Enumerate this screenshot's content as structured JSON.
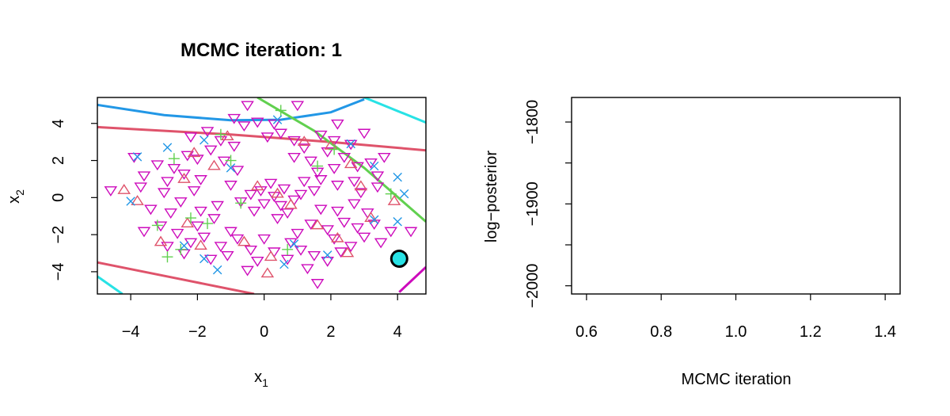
{
  "charts": [
    {
      "title": "MCMC iteration: 1",
      "xlabel": "x",
      "xlabel_sub": "1",
      "ylabel": "x",
      "ylabel_sub": "2"
    },
    {
      "xlabel": "MCMC iteration",
      "ylabel": "log−posterior"
    }
  ],
  "chart_data": [
    {
      "type": "scatter",
      "title": "MCMC iteration: 1",
      "xlabel": "x₁",
      "ylabel": "x₂",
      "xlim": [
        -5.0,
        4.85
      ],
      "ylim": [
        -5.2,
        5.4
      ],
      "xticks": [
        -4,
        -2,
        0,
        2,
        4
      ],
      "yticks": [
        -4,
        -2,
        0,
        2,
        4
      ],
      "xtick_labels": [
        "−4",
        "−2",
        "0",
        "2",
        "4"
      ],
      "ytick_labels": [
        "−4",
        "−2",
        "0",
        "2",
        "4"
      ],
      "grid": false,
      "legend": "none",
      "series": [
        {
          "marker": "triangle-down",
          "color": "#CD0BBC",
          "points": [
            [
              -2.3,
              2.3
            ],
            [
              -2.0,
              2.1
            ],
            [
              -2.7,
              1.6
            ],
            [
              -3.2,
              1.8
            ],
            [
              -3.6,
              1.2
            ],
            [
              -2.9,
              0.9
            ],
            [
              -2.4,
              1.3
            ],
            [
              -1.9,
              1.0
            ],
            [
              -1.6,
              2.6
            ],
            [
              -1.2,
              2.0
            ],
            [
              -0.8,
              1.5
            ],
            [
              -3.9,
              2.2
            ],
            [
              -2.2,
              3.3
            ],
            [
              -1.7,
              3.6
            ],
            [
              -1.3,
              3.1
            ],
            [
              -0.9,
              2.8
            ],
            [
              -0.6,
              3.9
            ],
            [
              -0.2,
              4.1
            ],
            [
              0.3,
              4.0
            ],
            [
              -0.9,
              4.3
            ],
            [
              -0.5,
              5.0
            ],
            [
              0.1,
              3.3
            ],
            [
              0.5,
              3.5
            ],
            [
              0.9,
              3.1
            ],
            [
              1.2,
              2.7
            ],
            [
              1.7,
              3.4
            ],
            [
              2.1,
              3.1
            ],
            [
              2.6,
              2.9
            ],
            [
              3.0,
              3.5
            ],
            [
              2.4,
              2.2
            ],
            [
              1.9,
              2.5
            ],
            [
              1.4,
              2.0
            ],
            [
              0.9,
              2.2
            ],
            [
              1.6,
              1.4
            ],
            [
              2.1,
              1.6
            ],
            [
              2.8,
              1.7
            ],
            [
              3.2,
              1.9
            ],
            [
              3.4,
              1.2
            ],
            [
              2.7,
              0.9
            ],
            [
              2.2,
              0.7
            ],
            [
              1.7,
              1.0
            ],
            [
              1.2,
              0.9
            ],
            [
              3.6,
              2.2
            ],
            [
              1.0,
              5.0
            ],
            [
              2.2,
              4.0
            ],
            [
              -0.1,
              0.4
            ],
            [
              0.3,
              0.1
            ],
            [
              0.6,
              0.5
            ],
            [
              0.0,
              -0.3
            ],
            [
              0.5,
              -0.4
            ],
            [
              0.9,
              -0.1
            ],
            [
              -0.4,
              0.2
            ],
            [
              0.2,
              0.8
            ],
            [
              -0.3,
              -0.7
            ],
            [
              0.7,
              -0.8
            ],
            [
              1.1,
              0.2
            ],
            [
              0.4,
              -1.1
            ],
            [
              -0.7,
              -0.2
            ],
            [
              -4.6,
              0.4
            ],
            [
              -3.7,
              0.6
            ],
            [
              -3.0,
              0.3
            ],
            [
              -2.5,
              -0.2
            ],
            [
              -2.1,
              0.4
            ],
            [
              -2.8,
              -0.8
            ],
            [
              -3.4,
              -0.6
            ],
            [
              -1.9,
              -0.7
            ],
            [
              -1.5,
              -1.1
            ],
            [
              -3.6,
              -1.8
            ],
            [
              -3.1,
              -1.5
            ],
            [
              -2.6,
              -1.9
            ],
            [
              -2.2,
              -2.4
            ],
            [
              -1.8,
              -2.1
            ],
            [
              -1.3,
              -2.6
            ],
            [
              -0.8,
              -2.2
            ],
            [
              -0.4,
              -2.8
            ],
            [
              -1.1,
              -3.1
            ],
            [
              -1.6,
              -3.3
            ],
            [
              -2.4,
              -3.0
            ],
            [
              -2.9,
              -2.6
            ],
            [
              -0.2,
              -3.4
            ],
            [
              0.3,
              -2.9
            ],
            [
              0.7,
              -3.3
            ],
            [
              1.1,
              -2.8
            ],
            [
              1.5,
              -3.1
            ],
            [
              1.9,
              -3.4
            ],
            [
              2.3,
              -2.9
            ],
            [
              1.3,
              -3.8
            ],
            [
              1.6,
              -4.6
            ],
            [
              -0.5,
              -3.9
            ],
            [
              2.1,
              -2.2
            ],
            [
              2.6,
              -2.6
            ],
            [
              3.0,
              -2.1
            ],
            [
              3.5,
              -2.4
            ],
            [
              2.8,
              -1.6
            ],
            [
              2.4,
              -1.3
            ],
            [
              1.9,
              -1.7
            ],
            [
              1.4,
              -1.4
            ],
            [
              1.0,
              -1.9
            ],
            [
              3.3,
              -1.4
            ],
            [
              3.8,
              -1.8
            ],
            [
              4.4,
              -1.8
            ],
            [
              2.2,
              -0.7
            ],
            [
              2.7,
              -0.3
            ],
            [
              3.1,
              -0.8
            ],
            [
              1.7,
              -0.6
            ],
            [
              0.8,
              -2.4
            ],
            [
              -1.4,
              -0.4
            ],
            [
              -2.0,
              -1.5
            ],
            [
              -1.0,
              -1.8
            ],
            [
              0.0,
              -2.2
            ],
            [
              2.9,
              0.3
            ],
            [
              1.5,
              0.4
            ],
            [
              3.4,
              0.6
            ],
            [
              -1.0,
              0.7
            ]
          ]
        },
        {
          "marker": "triangle-up",
          "color": "#DF536B",
          "points": [
            [
              -4.2,
              0.4
            ],
            [
              -3.8,
              -0.2
            ],
            [
              -2.1,
              2.4
            ],
            [
              -1.5,
              1.7
            ],
            [
              -2.4,
              1.0
            ],
            [
              -1.1,
              3.3
            ],
            [
              0.4,
              0.2
            ],
            [
              -0.2,
              0.6
            ],
            [
              0.8,
              -0.4
            ],
            [
              1.2,
              3.0
            ],
            [
              2.0,
              2.8
            ],
            [
              2.6,
              1.8
            ],
            [
              2.9,
              0.6
            ],
            [
              1.6,
              -1.5
            ],
            [
              2.2,
              -2.2
            ],
            [
              -2.3,
              -1.4
            ],
            [
              -3.1,
              -2.4
            ],
            [
              -1.9,
              -2.6
            ],
            [
              -0.6,
              -2.4
            ],
            [
              0.2,
              -3.2
            ],
            [
              0.1,
              -4.1
            ],
            [
              2.5,
              -3.0
            ],
            [
              3.2,
              -1.1
            ],
            [
              3.9,
              -0.2
            ]
          ]
        },
        {
          "marker": "plus",
          "color": "#61D04F",
          "points": [
            [
              0.5,
              4.7
            ],
            [
              -1.3,
              3.4
            ],
            [
              -1.0,
              2.0
            ],
            [
              -2.7,
              2.1
            ],
            [
              -3.2,
              -1.5
            ],
            [
              -2.9,
              -3.2
            ],
            [
              -2.5,
              -2.8
            ],
            [
              -1.7,
              -1.4
            ],
            [
              -0.7,
              -0.3
            ],
            [
              1.6,
              1.7
            ],
            [
              2.1,
              2.6
            ],
            [
              3.8,
              0.2
            ],
            [
              0.7,
              -2.8
            ],
            [
              -2.2,
              -1.1
            ]
          ]
        },
        {
          "marker": "x",
          "color": "#2297E6",
          "points": [
            [
              -4.0,
              -0.2
            ],
            [
              -3.8,
              2.2
            ],
            [
              -2.9,
              2.7
            ],
            [
              -1.8,
              3.1
            ],
            [
              -1.0,
              1.6
            ],
            [
              0.4,
              4.2
            ],
            [
              2.6,
              2.9
            ],
            [
              3.3,
              1.7
            ],
            [
              4.0,
              1.1
            ],
            [
              4.2,
              0.2
            ],
            [
              3.3,
              -1.2
            ],
            [
              4.0,
              -1.3
            ],
            [
              0.6,
              -3.6
            ],
            [
              -1.4,
              -3.9
            ],
            [
              -1.8,
              -3.3
            ],
            [
              -2.4,
              -2.6
            ],
            [
              1.9,
              -3.1
            ],
            [
              0.9,
              -2.5
            ]
          ]
        }
      ],
      "highlight_point": {
        "x": 4.05,
        "y": -3.3,
        "fill": "#28E2E5",
        "stroke": "#000000"
      },
      "curves": [
        {
          "color": "#2297E6",
          "points": [
            [
              -5.0,
              5.0
            ],
            [
              -3.0,
              4.45
            ],
            [
              -1.0,
              4.17
            ],
            [
              0.5,
              4.2
            ],
            [
              2.0,
              4.6
            ],
            [
              3.0,
              5.3
            ]
          ]
        },
        {
          "color": "#28E2E5",
          "points": [
            [
              3.0,
              5.4
            ],
            [
              4.85,
              4.05
            ]
          ]
        },
        {
          "color": "#28E2E5",
          "points": [
            [
              -5.0,
              -4.25
            ],
            [
              -4.25,
              -5.2
            ]
          ]
        },
        {
          "color": "#DF536B",
          "points": [
            [
              -5.0,
              3.8
            ],
            [
              -1.0,
              3.4
            ],
            [
              2.0,
              3.0
            ],
            [
              4.85,
              2.55
            ]
          ]
        },
        {
          "color": "#DF536B",
          "points": [
            [
              -5.0,
              -3.5
            ],
            [
              -2.5,
              -4.4
            ],
            [
              -0.3,
              -5.2
            ]
          ]
        },
        {
          "color": "#61D04F",
          "points": [
            [
              -0.2,
              5.4
            ],
            [
              1.5,
              3.6
            ],
            [
              3.0,
              1.6
            ],
            [
              4.85,
              -1.3
            ]
          ]
        },
        {
          "color": "#CD0BBC",
          "points": [
            [
              4.05,
              -5.1
            ],
            [
              4.85,
              -3.75
            ]
          ]
        }
      ]
    },
    {
      "type": "line",
      "xlabel": "MCMC iteration",
      "ylabel": "log−posterior",
      "xlim": [
        0.56,
        1.44
      ],
      "ylim": [
        -2010,
        -1770
      ],
      "xticks": [
        0.6,
        0.8,
        1.0,
        1.2,
        1.4
      ],
      "xtick_labels": [
        "0.6",
        "0.8",
        "1.0",
        "1.2",
        "1.4"
      ],
      "yticks": [
        -2000,
        -1950,
        -1900,
        -1850,
        -1800
      ],
      "ytick_labels": [
        "−2000",
        "",
        "−1900",
        "",
        "−1800"
      ],
      "grid": false,
      "series": []
    }
  ]
}
